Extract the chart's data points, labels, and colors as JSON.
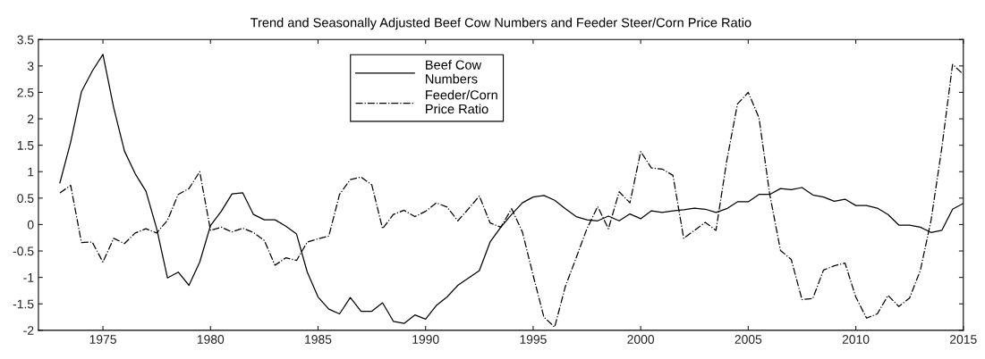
{
  "chart_data": {
    "type": "line",
    "title": "Trend and Seasonally Adjusted Beef Cow Numbers and Feeder Steer/Corn Price Ratio",
    "x": [
      1973,
      1973.5,
      1974,
      1974.5,
      1975,
      1975.5,
      1976,
      1976.5,
      1977,
      1977.5,
      1978,
      1978.5,
      1979,
      1979.5,
      1980,
      1980.5,
      1981,
      1981.5,
      1982,
      1982.5,
      1983,
      1983.5,
      1984,
      1984.5,
      1985,
      1985.5,
      1986,
      1986.5,
      1987,
      1987.5,
      1988,
      1988.5,
      1989,
      1989.5,
      1990,
      1990.5,
      1991,
      1991.5,
      1992,
      1992.5,
      1993,
      1993.5,
      1994,
      1994.5,
      1995,
      1995.5,
      1996,
      1996.5,
      1997,
      1997.5,
      1998,
      1998.5,
      1999,
      1999.5,
      2000,
      2000.5,
      2001,
      2001.5,
      2002,
      2002.5,
      2003,
      2003.5,
      2004,
      2004.5,
      2005,
      2005.5,
      2006,
      2006.5,
      2007,
      2007.5,
      2008,
      2008.5,
      2009,
      2009.5,
      2010,
      2010.5,
      2011,
      2011.5,
      2012,
      2012.5,
      2013,
      2013.5,
      2014,
      2014.5,
      2015
    ],
    "series": [
      {
        "name": "Beef Cow\nNumbers",
        "color": "#000000",
        "line_style": "solid",
        "values": [
          0.79,
          1.56,
          2.51,
          2.9,
          3.22,
          2.21,
          1.39,
          0.96,
          0.63,
          -0.08,
          -1.01,
          -0.9,
          -1.15,
          -0.71,
          -0.02,
          0.25,
          0.58,
          0.6,
          0.19,
          0.09,
          0.09,
          -0.03,
          -0.18,
          -0.9,
          -1.37,
          -1.6,
          -1.69,
          -1.38,
          -1.64,
          -1.64,
          -1.48,
          -1.83,
          -1.87,
          -1.71,
          -1.79,
          -1.53,
          -1.37,
          -1.15,
          -1.01,
          -0.87,
          -0.33,
          -0.05,
          0.19,
          0.41,
          0.52,
          0.55,
          0.46,
          0.3,
          0.15,
          0.09,
          0.07,
          0.16,
          0.07,
          0.2,
          0.11,
          0.26,
          0.23,
          0.26,
          0.28,
          0.31,
          0.29,
          0.23,
          0.3,
          0.43,
          0.43,
          0.57,
          0.57,
          0.68,
          0.66,
          0.7,
          0.56,
          0.52,
          0.44,
          0.48,
          0.36,
          0.36,
          0.31,
          0.19,
          -0.01,
          -0.01,
          -0.05,
          -0.15,
          -0.11,
          0.29,
          0.4
        ]
      },
      {
        "name": "Feeder/Corn\nPrice Ratio",
        "color": "#000000",
        "line_style": "dashdot",
        "values": [
          0.6,
          0.74,
          -0.34,
          -0.33,
          -0.71,
          -0.26,
          -0.36,
          -0.16,
          -0.08,
          -0.16,
          0.08,
          0.57,
          0.68,
          1.0,
          -0.11,
          -0.05,
          -0.14,
          -0.07,
          -0.15,
          -0.3,
          -0.77,
          -0.63,
          -0.68,
          -0.33,
          -0.27,
          -0.22,
          0.57,
          0.85,
          0.9,
          0.75,
          -0.08,
          0.19,
          0.27,
          0.15,
          0.25,
          0.41,
          0.33,
          0.07,
          0.3,
          0.54,
          0.03,
          -0.05,
          0.3,
          -0.14,
          -0.96,
          -1.75,
          -1.94,
          -1.17,
          -0.63,
          -0.08,
          0.34,
          -0.08,
          0.62,
          0.41,
          1.38,
          1.07,
          1.05,
          0.93,
          -0.26,
          -0.11,
          0.04,
          -0.11,
          1.2,
          2.28,
          2.5,
          2.02,
          0.57,
          -0.49,
          -0.66,
          -1.42,
          -1.4,
          -0.86,
          -0.78,
          -0.73,
          -1.37,
          -1.77,
          -1.69,
          -1.34,
          -1.55,
          -1.39,
          -0.87,
          0.08,
          1.45,
          3.03,
          2.84
        ]
      }
    ],
    "xlim": [
      1972,
      2015
    ],
    "xticks": [
      1975,
      1980,
      1985,
      1990,
      1995,
      2000,
      2005,
      2010,
      2015
    ],
    "ylim": [
      -2,
      3.5
    ],
    "yticks": [
      -2,
      -1.5,
      -1,
      -0.5,
      0,
      0.5,
      1,
      1.5,
      2,
      2.5,
      3,
      3.5
    ],
    "grid": false,
    "legend": "top center",
    "marker": "none"
  }
}
